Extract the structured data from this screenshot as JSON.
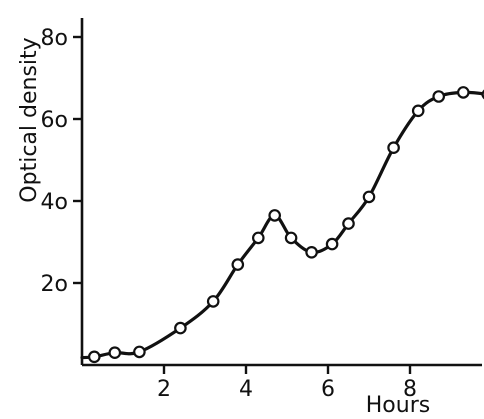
{
  "chart_data": {
    "type": "line",
    "title": "",
    "xlabel": "Hours",
    "ylabel": "Optical density",
    "xlim": [
      0,
      10
    ],
    "ylim": [
      0,
      80
    ],
    "x_ticks": [
      2,
      4,
      6,
      8
    ],
    "x_tick_labels": [
      "2",
      "4",
      "6",
      "8"
    ],
    "y_ticks": [
      20,
      40,
      60,
      80
    ],
    "y_tick_labels": [
      "2o",
      "4o",
      "6o",
      "8o"
    ],
    "grid": false,
    "legend": "none",
    "series": [
      {
        "x": [
          0.3,
          0.8,
          1.4,
          2.4,
          3.2,
          3.8,
          4.3,
          4.7,
          5.1,
          5.6,
          6.1,
          6.5,
          7.0,
          7.6,
          8.2,
          8.7,
          9.3,
          9.9
        ],
        "y": [
          2,
          3,
          3.2,
          9,
          15.5,
          24.5,
          31,
          36.5,
          31,
          27.5,
          29.5,
          34.5,
          41,
          53,
          62,
          65.5,
          66.5,
          66
        ]
      }
    ]
  }
}
